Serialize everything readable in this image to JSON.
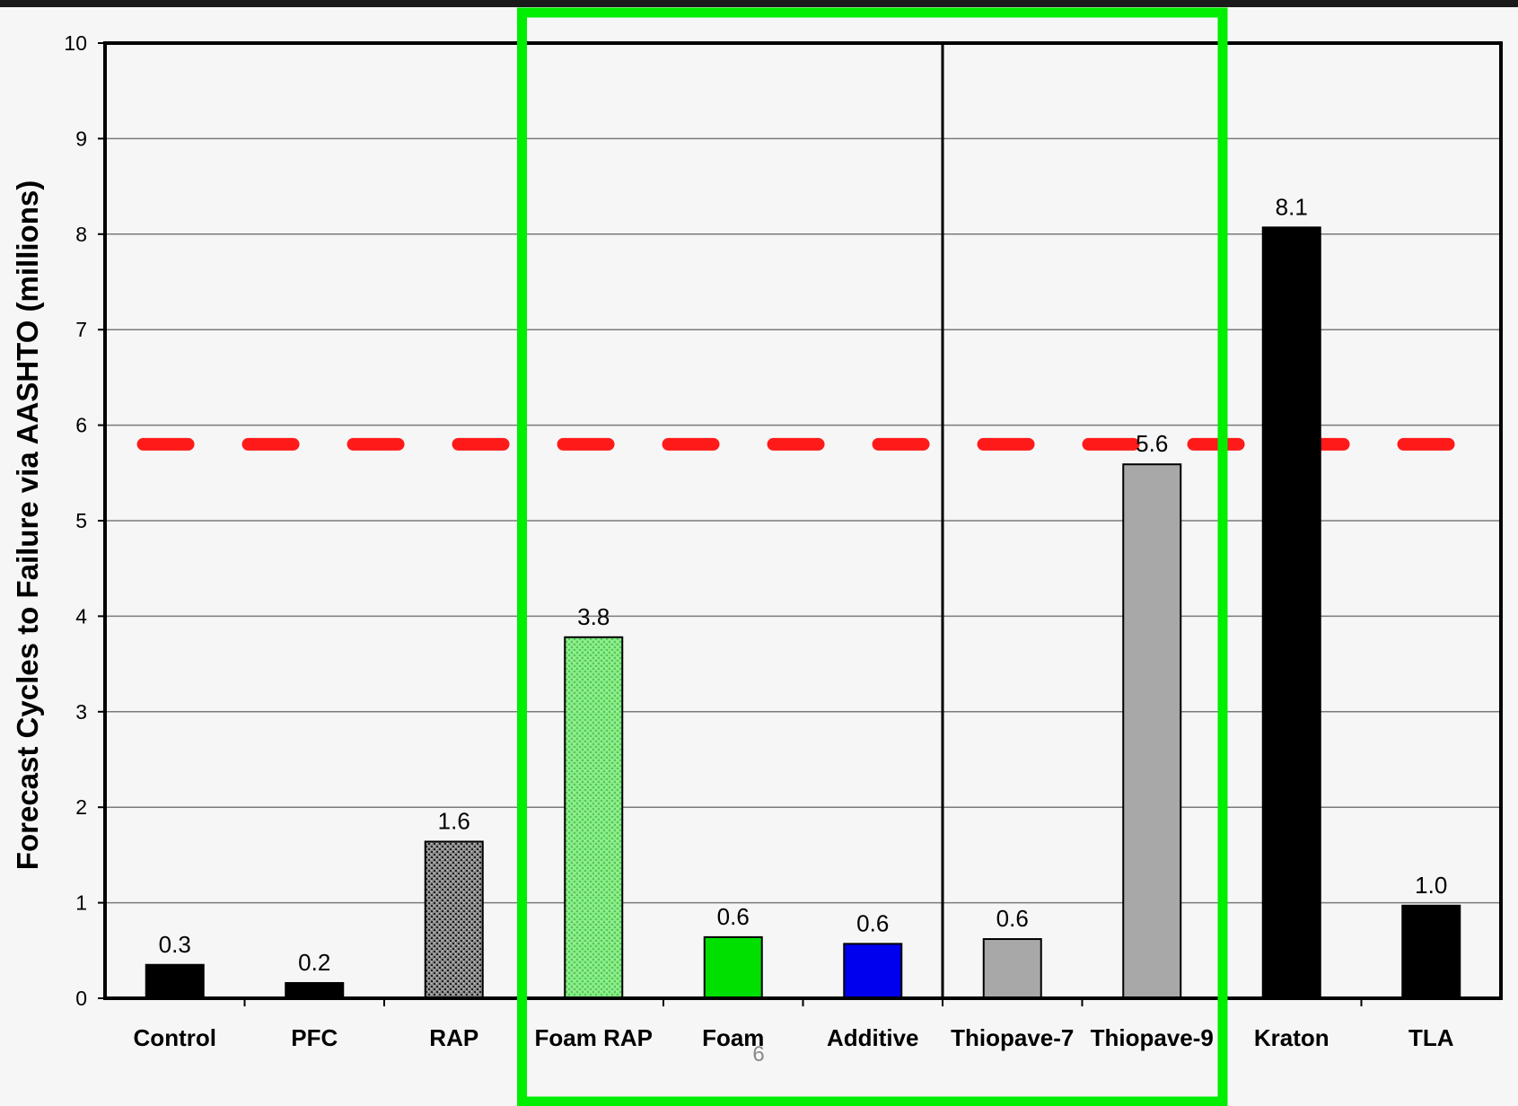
{
  "chart_data": {
    "type": "bar",
    "title": "",
    "xlabel": "",
    "ylabel": "Forecast Cycles to Failure via AASHTO (millions)",
    "ylim": [
      0,
      10
    ],
    "yticks": [
      0,
      1,
      2,
      3,
      4,
      5,
      6,
      7,
      8,
      9,
      10
    ],
    "grid": true,
    "legend": "none",
    "categories": [
      "Control",
      "PFC",
      "RAP",
      "Foam RAP",
      "Foam",
      "Additive",
      "Thiopave-7",
      "Thiopave-9",
      "Kraton",
      "TLA"
    ],
    "values": [
      0.35,
      0.16,
      1.64,
      3.78,
      0.64,
      0.57,
      0.62,
      5.59,
      8.07,
      0.97
    ],
    "data_labels": [
      "0.3",
      "0.2",
      "1.6",
      "3.8",
      "0.6",
      "0.6",
      "0.6",
      "5.6",
      "8.1",
      "1.0"
    ],
    "bar_colors": [
      "#000000",
      "#000000",
      "#555555",
      "#7ee87e",
      "#00e000",
      "#0000ee",
      "#a8a8a8",
      "#a8a8a8",
      "#000000",
      "#000000"
    ],
    "bar_patterns": [
      "solid",
      "solid",
      "speckle-dark",
      "speckle-light",
      "solid",
      "solid",
      "solid",
      "solid",
      "solid",
      "solid"
    ],
    "reference_line": {
      "value": 5.8,
      "color": "#ff1a1a",
      "style": "dashed"
    },
    "group_divider_after": "Additive",
    "highlight_box": {
      "from": "Foam RAP",
      "to": "Thiopave-9",
      "color": "#00ee00"
    }
  },
  "page_number": "6"
}
